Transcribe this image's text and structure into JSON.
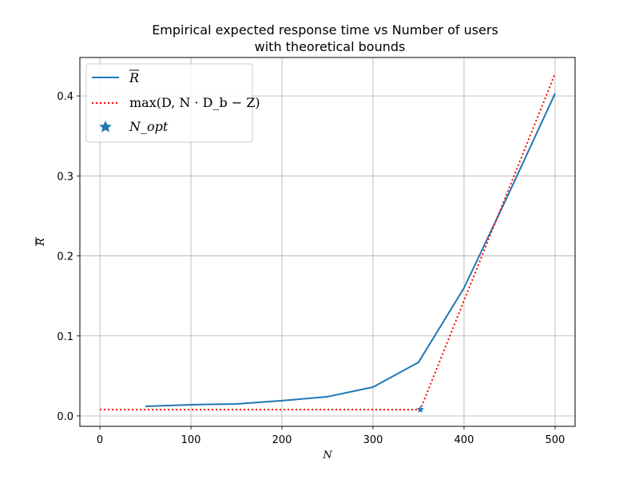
{
  "chart_data": {
    "type": "line",
    "title": "Empirical expected response time vs Number of users",
    "subtitle": "with theoretical bounds",
    "xlabel": "N",
    "ylabel": "R",
    "xlim": [
      -22,
      522
    ],
    "ylim": [
      -0.013,
      0.448
    ],
    "xticks": [
      0,
      100,
      200,
      300,
      400,
      500
    ],
    "yticks": [
      0.0,
      0.1,
      0.2,
      0.3,
      0.4
    ],
    "grid": true,
    "legend_position": "top-left",
    "series": [
      {
        "name": "R",
        "legend_label": "R",
        "style": "solid",
        "color": "#1f77b4",
        "x": [
          50,
          100,
          150,
          200,
          250,
          300,
          350,
          400,
          450,
          500
        ],
        "y": [
          0.012,
          0.014,
          0.015,
          0.019,
          0.024,
          0.036,
          0.067,
          0.16,
          0.28,
          0.403
        ]
      },
      {
        "name": "max(D, N · D_b − Z)",
        "legend_label": "max(D, N · D_b − Z)",
        "style": "dotted",
        "color": "#ff0000",
        "x": [
          0,
          352,
          500
        ],
        "y": [
          0.008,
          0.008,
          0.428
        ]
      },
      {
        "name": "N_opt",
        "legend_label": "N_opt",
        "style": "marker-star",
        "color": "#1f77b4",
        "x": [
          352
        ],
        "y": [
          0.008
        ]
      }
    ]
  }
}
